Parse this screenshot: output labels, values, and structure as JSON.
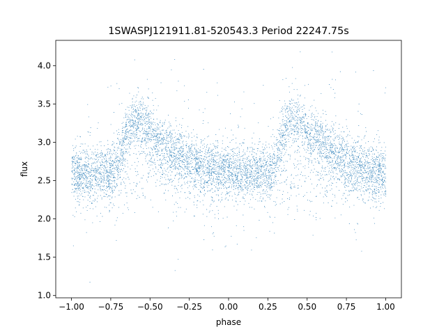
{
  "chart_data": {
    "type": "scatter",
    "title": "1SWASPJ121911.81-520543.3 Period 22247.75s",
    "xlabel": "phase",
    "ylabel": "flux",
    "xlim": [
      -1.1,
      1.1
    ],
    "ylim": [
      0.97,
      4.33
    ],
    "grid": false,
    "legend": "none",
    "marker_color": "#1f77b4",
    "x_ticks": [
      -1.0,
      -0.75,
      -0.5,
      -0.25,
      0.0,
      0.25,
      0.5,
      0.75,
      1.0
    ],
    "x_tick_labels": [
      "−1.00",
      "−0.75",
      "−0.50",
      "−0.25",
      "0.00",
      "0.25",
      "0.50",
      "0.75",
      "1.00"
    ],
    "y_ticks": [
      1.0,
      1.5,
      2.0,
      2.5,
      3.0,
      3.5,
      4.0
    ],
    "y_tick_labels": [
      "1.0",
      "1.5",
      "2.0",
      "2.5",
      "3.0",
      "3.5",
      "4.0"
    ],
    "series": [
      {
        "description_of_trend": "",
        "x": [
          -1.0,
          -0.9,
          -0.8,
          -0.75,
          -0.7,
          -0.65,
          -0.6,
          -0.55,
          -0.5,
          -0.4,
          -0.3,
          -0.2,
          -0.1,
          0.0,
          0.1,
          0.2,
          0.25,
          0.3,
          0.35,
          0.4,
          0.45,
          0.5,
          0.6,
          0.7,
          0.8,
          0.9,
          1.0
        ],
        "y": [
          2.6,
          2.58,
          2.6,
          2.62,
          2.75,
          3.15,
          3.3,
          3.25,
          3.1,
          2.95,
          2.8,
          2.7,
          2.65,
          2.6,
          2.58,
          2.6,
          2.62,
          2.75,
          3.15,
          3.3,
          3.25,
          3.1,
          2.95,
          2.8,
          2.7,
          2.65,
          2.6
        ]
      }
    ]
  }
}
